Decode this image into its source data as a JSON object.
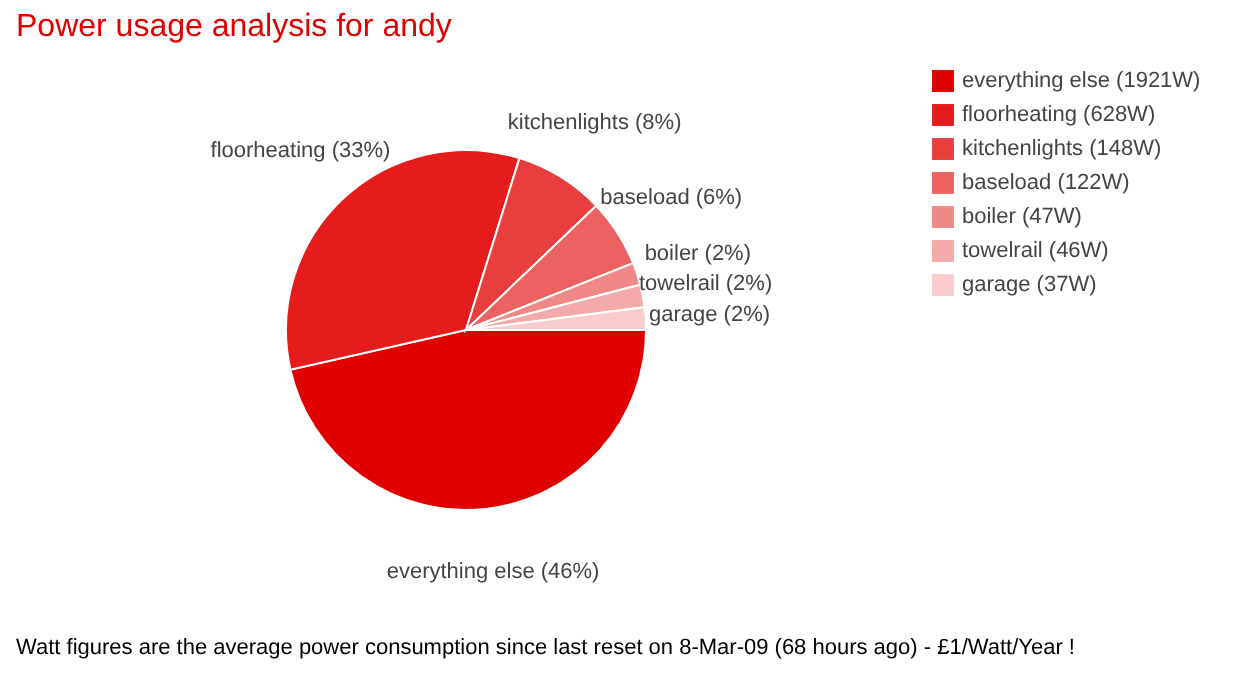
{
  "chart_data": {
    "type": "pie",
    "title": "Power usage analysis for andy",
    "categories": [
      "everything else (1921W)",
      "floorheating (628W)",
      "kitchenlights (148W)",
      "baseload (122W)",
      "boiler (47W)",
      "towelrail (46W)",
      "garage (37W)"
    ],
    "values": [
      46,
      33,
      8,
      6,
      2,
      2,
      2
    ],
    "value_labels": [
      "everything else (46%)",
      "floorheating (33%)",
      "kitchenlights (8%)",
      "baseload (6%)",
      "boiler (2%)",
      "towelrail (2%)",
      "garage (2%)"
    ],
    "colors": [
      "#e00000",
      "#e41c1c",
      "#e83e3e",
      "#ec6262",
      "#f08888",
      "#f4aaaa",
      "#f8cccc"
    ],
    "legend": "right",
    "annotations": [
      "Watt figures are the average power consumption since last reset on 8-Mar-09 (68 hours ago) - £1/Watt/Year !"
    ]
  }
}
